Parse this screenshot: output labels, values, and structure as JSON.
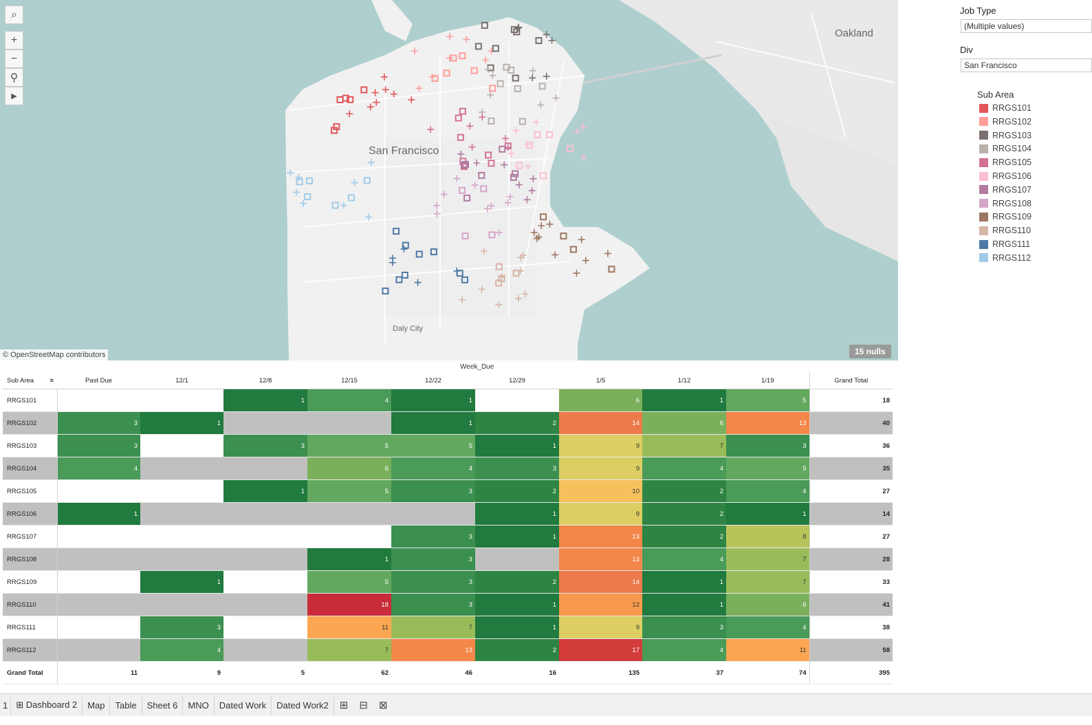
{
  "map": {
    "city_labels": {
      "sf": "San Francisco",
      "oakland": "Oakland",
      "daly_city": "Daly City"
    },
    "credit": "© OpenStreetMap contributors",
    "nulls": "15 nulls",
    "tools": [
      "search-icon",
      "zoom-in-icon",
      "zoom-out-icon",
      "pin-icon",
      "play-icon"
    ]
  },
  "filters": {
    "job_type": {
      "title": "Job Type",
      "value": "(Multiple values)"
    },
    "div": {
      "title": "Div",
      "value": "San Francisco"
    }
  },
  "legend": {
    "title": "Sub Area",
    "items": [
      {
        "label": "RRGS101",
        "color": "#e15759"
      },
      {
        "label": "RRGS102",
        "color": "#ff9d9a"
      },
      {
        "label": "RRGS103",
        "color": "#79706e"
      },
      {
        "label": "RRGS104",
        "color": "#bab0ac"
      },
      {
        "label": "RRGS105",
        "color": "#d37295"
      },
      {
        "label": "RRGS106",
        "color": "#fabfd2"
      },
      {
        "label": "RRGS107",
        "color": "#b07aa1"
      },
      {
        "label": "RRGS108",
        "color": "#d4a6c8"
      },
      {
        "label": "RRGS109",
        "color": "#9d7660"
      },
      {
        "label": "RRGS110",
        "color": "#d7b5a6"
      },
      {
        "label": "RRGS111",
        "color": "#4e79a7"
      },
      {
        "label": "RRGS112",
        "color": "#a0cbe8"
      }
    ]
  },
  "table": {
    "column_group_label": "Week_Due",
    "row_header_label": "Sub Area",
    "columns": [
      "Past Due",
      "12/1",
      "12/8",
      "12/15",
      "12/22",
      "12/29",
      "1/5",
      "1/12",
      "1/19",
      "Grand Total"
    ],
    "rows": [
      {
        "label": "RRGS101",
        "values": [
          "",
          "",
          "1",
          "4",
          "1",
          "",
          "6",
          "1",
          "5"
        ],
        "total": "18"
      },
      {
        "label": "RRGS102",
        "values": [
          "3",
          "1",
          "",
          "",
          "1",
          "2",
          "14",
          "6",
          "13"
        ],
        "total": "40"
      },
      {
        "label": "RRGS103",
        "values": [
          "3",
          "",
          "3",
          "5",
          "5",
          "1",
          "9",
          "7",
          "3"
        ],
        "total": "36"
      },
      {
        "label": "RRGS104",
        "values": [
          "4",
          "",
          "",
          "6",
          "4",
          "3",
          "9",
          "4",
          "5"
        ],
        "total": "35"
      },
      {
        "label": "RRGS105",
        "values": [
          "",
          "",
          "1",
          "5",
          "3",
          "2",
          "10",
          "2",
          "4"
        ],
        "total": "27"
      },
      {
        "label": "RRGS106",
        "values": [
          "1",
          "",
          "",
          "",
          "",
          "1",
          "9",
          "2",
          "1"
        ],
        "total": "14"
      },
      {
        "label": "RRGS107",
        "values": [
          "",
          "",
          "",
          "",
          "3",
          "1",
          "13",
          "2",
          "8"
        ],
        "total": "27"
      },
      {
        "label": "RRGS108",
        "values": [
          "",
          "",
          "",
          "1",
          "3",
          "",
          "13",
          "4",
          "7"
        ],
        "total": "28"
      },
      {
        "label": "RRGS109",
        "values": [
          "",
          "1",
          "",
          "5",
          "3",
          "2",
          "14",
          "1",
          "7"
        ],
        "total": "33"
      },
      {
        "label": "RRGS110",
        "values": [
          "",
          "",
          "",
          "18",
          "3",
          "1",
          "12",
          "1",
          "6"
        ],
        "total": "41"
      },
      {
        "label": "RRGS111",
        "values": [
          "",
          "3",
          "",
          "11",
          "7",
          "1",
          "9",
          "3",
          "4"
        ],
        "total": "38"
      },
      {
        "label": "RRGS112",
        "values": [
          "",
          "4",
          "",
          "7",
          "13",
          "2",
          "17",
          "4",
          "11"
        ],
        "total": "58"
      }
    ],
    "grand_total": {
      "label": "Grand Total",
      "values": [
        "11",
        "9",
        "5",
        "62",
        "46",
        "16",
        "135",
        "37",
        "74"
      ],
      "total": "395"
    },
    "heat_colors": {
      "1": "#217a3e",
      "2": "#2e8543",
      "3": "#3b8f4f",
      "4": "#4a9a58",
      "5": "#62a85f",
      "6": "#7ab05b",
      "7": "#99bc5a",
      "8": "#b8c45a",
      "9": "#dcce63",
      "10": "#f6c15c",
      "11": "#fca652",
      "12": "#f89a4d",
      "13": "#f38649",
      "14": "#ec7a4a",
      "17": "#d23c3a",
      "18": "#c72c38"
    }
  },
  "tabs": {
    "pager": "1",
    "items": [
      "Dashboard 2",
      "Map",
      "Table",
      "Sheet 6",
      "MNO",
      "Dated Work",
      "Dated Work2"
    ],
    "actions": [
      "new-worksheet-icon",
      "new-dashboard-icon",
      "new-story-icon"
    ]
  }
}
